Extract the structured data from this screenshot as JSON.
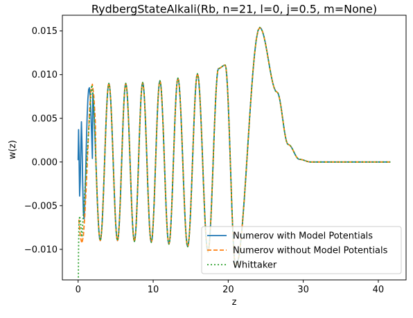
{
  "chart_data": {
    "type": "line",
    "title": "RydbergStateAlkali(Rb, n=21, l=0, j=0.5, m=None)",
    "xlabel": "z",
    "ylabel": "w(z)",
    "xlim": [
      -2.1,
      43.7
    ],
    "ylim": [
      -0.0135,
      0.0168
    ],
    "xticks": [
      0,
      10,
      20,
      30,
      40
    ],
    "yticks": [
      -0.01,
      -0.005,
      0.0,
      0.005,
      0.01,
      0.015
    ],
    "xtick_labels": [
      "0",
      "10",
      "20",
      "30",
      "40"
    ],
    "ytick_labels": [
      "−0.010",
      "−0.005",
      "0.000",
      "0.005",
      "0.010",
      "0.015"
    ],
    "grid": false,
    "legend_position": "lower right",
    "series": [
      {
        "name": "Numerov with Model Potentials",
        "color": "#1f77b4",
        "style": "solid",
        "x": [
          0.0,
          0.06,
          0.12,
          0.2,
          0.28,
          0.36,
          0.44,
          0.52,
          0.6,
          0.7,
          0.8,
          0.9,
          1.0,
          1.1,
          1.2,
          1.3,
          1.4,
          1.5,
          1.6,
          1.7,
          1.8,
          1.9
        ],
        "y": [
          0.0002,
          0.0037,
          0.0008,
          -0.0039,
          -0.0022,
          0.0016,
          0.0046,
          0.002,
          -0.002,
          -0.0058,
          -0.0065,
          -0.0045,
          -0.0015,
          0.0022,
          0.0052,
          0.0072,
          0.0083,
          0.0085,
          0.0076,
          0.0058,
          0.0032,
          0.0004
        ]
      },
      {
        "name": "Numerov without Model Potentials",
        "color": "#ff7f0e",
        "style": "dashed",
        "x": [
          0.1,
          0.3,
          0.5,
          0.7,
          0.9,
          1.1,
          1.3,
          1.5,
          1.7,
          1.9,
          2.1,
          2.3
        ],
        "y": [
          -0.0066,
          -0.0086,
          -0.0093,
          -0.0085,
          -0.006,
          -0.0025,
          0.0015,
          0.0055,
          0.0082,
          0.0089,
          0.0075,
          0.0045
        ]
      },
      {
        "name": "Whittaker",
        "color": "#2ca02c",
        "style": "dotted",
        "x": [
          0.01,
          0.05,
          0.1,
          0.2,
          0.35,
          0.5
        ],
        "y": [
          -0.0168,
          -0.0105,
          -0.0072,
          -0.0062,
          -0.0072,
          -0.0086
        ]
      }
    ],
    "envelope": {
      "note": "shared oscillation (all three series coincide for z >= ~1.5)",
      "extrema": [
        [
          1.8,
          0.0088
        ],
        [
          2.95,
          -0.009
        ],
        [
          4.1,
          0.009
        ],
        [
          5.25,
          -0.009
        ],
        [
          6.35,
          0.009
        ],
        [
          7.5,
          -0.0091
        ],
        [
          8.6,
          0.0091
        ],
        [
          9.75,
          -0.0092
        ],
        [
          10.9,
          0.0093
        ],
        [
          12.1,
          -0.0094
        ],
        [
          13.3,
          0.0096
        ],
        [
          14.6,
          -0.0097
        ],
        [
          15.9,
          0.0101
        ],
        [
          17.3,
          -0.0103
        ],
        [
          18.7,
          0.0107
        ],
        [
          19.6,
          0.0111
        ],
        [
          21.0,
          -0.012
        ],
        [
          24.2,
          0.0154
        ]
      ],
      "tail": [
        [
          26.5,
          0.008
        ],
        [
          28.0,
          0.002
        ],
        [
          29.5,
          0.0003
        ],
        [
          31.0,
          0.0
        ],
        [
          41.6,
          0.0
        ]
      ]
    }
  }
}
